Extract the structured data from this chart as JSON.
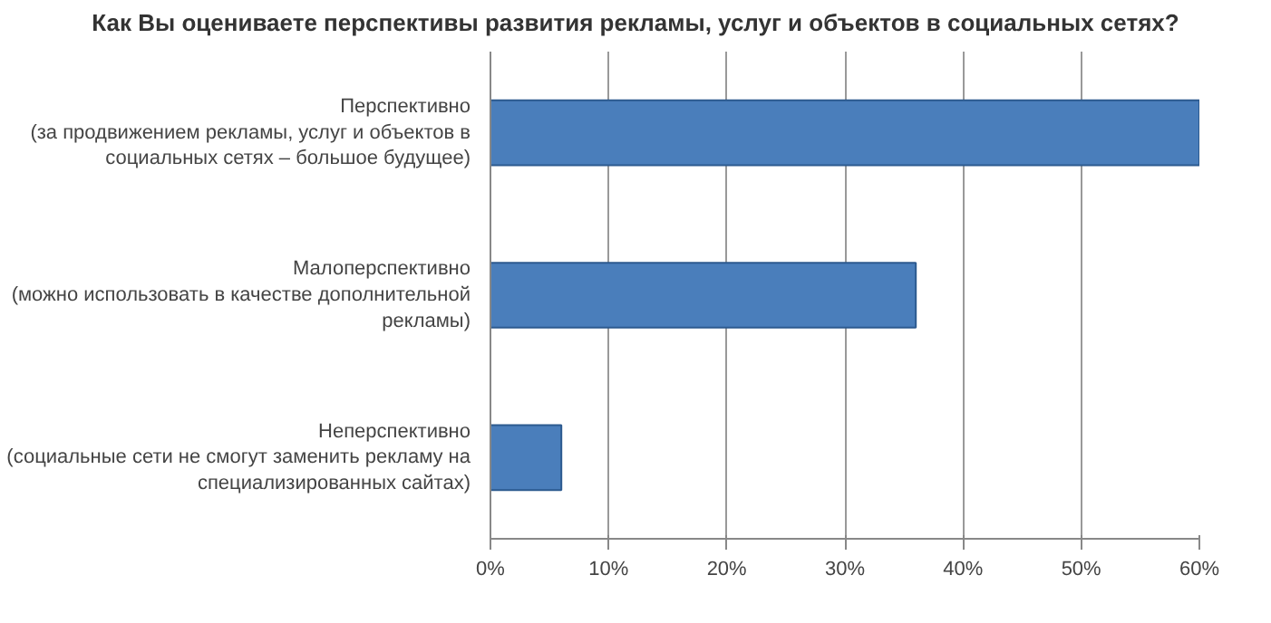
{
  "chart_data": {
    "type": "bar",
    "orientation": "horizontal",
    "title": "Как Вы оцениваете перспективы развития рекламы, услуг и объектов в социальных сетях?",
    "categories": [
      "Перспективно (за продвижением рекламы, услуг и объектов в социальных сетях – большое будущее)",
      "Малоперспективно (можно использовать в качестве дополнительной рекламы)",
      "Неперспективно (социальные сети не смогут заменить рекламу на специализированных сайтах)"
    ],
    "values": [
      60,
      36,
      6
    ],
    "color": "#4a7ebb",
    "xlim": [
      0,
      60
    ],
    "xticks": [
      {
        "value": 0,
        "label": "0%"
      },
      {
        "value": 10,
        "label": "10%"
      },
      {
        "value": 20,
        "label": "20%"
      },
      {
        "value": 30,
        "label": "30%"
      },
      {
        "value": 40,
        "label": "40%"
      },
      {
        "value": 50,
        "label": "50%"
      },
      {
        "value": 60,
        "label": "60%"
      }
    ],
    "grid": "x"
  }
}
